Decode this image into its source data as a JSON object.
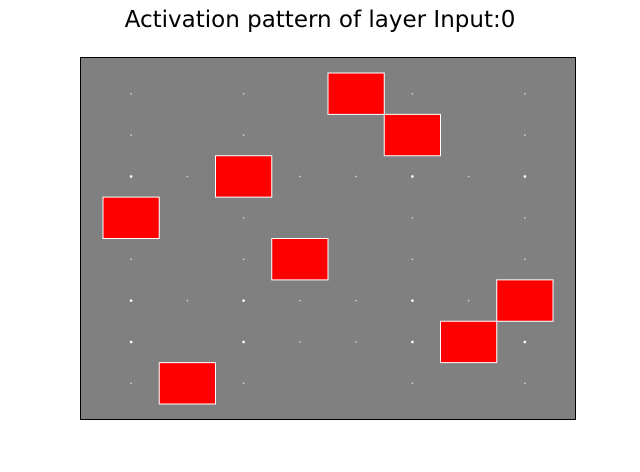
{
  "chart_data": {
    "type": "heatmap",
    "title": "Activation pattern of layer Input:0",
    "xlabel": "",
    "ylabel": "",
    "grid": false,
    "axes_ticks": false,
    "background_color": "#808080",
    "active_color": "#ff0000",
    "active_edge_color": "#ffffff",
    "inactive_marker_color": "#ffffff",
    "n_columns": 8,
    "n_rows": 8,
    "active_cells": [
      {
        "col": 4,
        "row": 0
      },
      {
        "col": 5,
        "row": 1
      },
      {
        "col": 2,
        "row": 2
      },
      {
        "col": 0,
        "row": 3
      },
      {
        "col": 3,
        "row": 4
      },
      {
        "col": 7,
        "row": 5
      },
      {
        "col": 6,
        "row": 6
      },
      {
        "col": 1,
        "row": 7
      }
    ],
    "inactive_markers": [
      {
        "col": 0,
        "row": 0,
        "intensity": 0.5
      },
      {
        "col": 2,
        "row": 0,
        "intensity": 0.5
      },
      {
        "col": 5,
        "row": 0,
        "intensity": 0.5
      },
      {
        "col": 7,
        "row": 0,
        "intensity": 0.5
      },
      {
        "col": 0,
        "row": 1,
        "intensity": 0.5
      },
      {
        "col": 2,
        "row": 1,
        "intensity": 0.5
      },
      {
        "col": 7,
        "row": 1,
        "intensity": 0.5
      },
      {
        "col": 0,
        "row": 2,
        "intensity": 1.0
      },
      {
        "col": 1,
        "row": 2,
        "intensity": 0.5
      },
      {
        "col": 3,
        "row": 2,
        "intensity": 0.5
      },
      {
        "col": 4,
        "row": 2,
        "intensity": 0.5
      },
      {
        "col": 5,
        "row": 2,
        "intensity": 1.0
      },
      {
        "col": 6,
        "row": 2,
        "intensity": 0.5
      },
      {
        "col": 7,
        "row": 2,
        "intensity": 1.0
      },
      {
        "col": 2,
        "row": 3,
        "intensity": 0.5
      },
      {
        "col": 5,
        "row": 3,
        "intensity": 0.5
      },
      {
        "col": 7,
        "row": 3,
        "intensity": 0.5
      },
      {
        "col": 0,
        "row": 4,
        "intensity": 0.5
      },
      {
        "col": 2,
        "row": 4,
        "intensity": 0.5
      },
      {
        "col": 5,
        "row": 4,
        "intensity": 0.5
      },
      {
        "col": 7,
        "row": 4,
        "intensity": 0.5
      },
      {
        "col": 0,
        "row": 5,
        "intensity": 1.0
      },
      {
        "col": 1,
        "row": 5,
        "intensity": 0.5
      },
      {
        "col": 2,
        "row": 5,
        "intensity": 1.0
      },
      {
        "col": 3,
        "row": 5,
        "intensity": 0.5
      },
      {
        "col": 4,
        "row": 5,
        "intensity": 0.5
      },
      {
        "col": 5,
        "row": 5,
        "intensity": 1.0
      },
      {
        "col": 6,
        "row": 5,
        "intensity": 0.5
      },
      {
        "col": 0,
        "row": 6,
        "intensity": 1.0
      },
      {
        "col": 2,
        "row": 6,
        "intensity": 1.0
      },
      {
        "col": 3,
        "row": 6,
        "intensity": 0.5
      },
      {
        "col": 4,
        "row": 6,
        "intensity": 0.5
      },
      {
        "col": 5,
        "row": 6,
        "intensity": 1.0
      },
      {
        "col": 7,
        "row": 6,
        "intensity": 1.0
      },
      {
        "col": 0,
        "row": 7,
        "intensity": 0.5
      },
      {
        "col": 2,
        "row": 7,
        "intensity": 0.5
      },
      {
        "col": 5,
        "row": 7,
        "intensity": 0.5
      },
      {
        "col": 7,
        "row": 7,
        "intensity": 0.5
      }
    ]
  }
}
